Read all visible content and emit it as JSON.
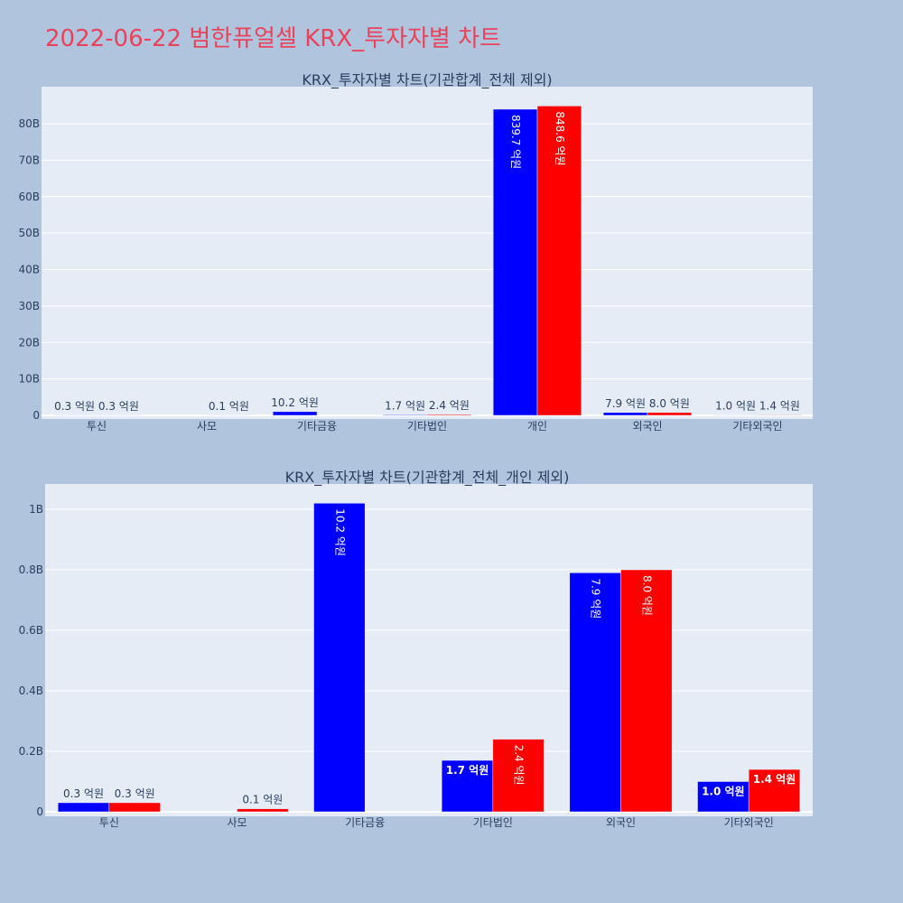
{
  "page": {
    "title": "2022-06-22 범한퓨얼셀 KRX_투자자별 차트"
  },
  "colors": {
    "buy": "#0000ff",
    "sell": "#ff0000",
    "plot_bg": "#e5ecf6",
    "page_bg": "#b0c4de",
    "grid": "#ffffff",
    "text": "#2a3f5f"
  },
  "chart_data": [
    {
      "type": "bar",
      "title": "KRX_투자자별 차트(기관합계_전체 제외)",
      "categories": [
        "투신",
        "사모",
        "기타금융",
        "기타법인",
        "개인",
        "외국인",
        "기타외국인"
      ],
      "ylim": [
        0,
        90
      ],
      "yticks": [
        0,
        10,
        20,
        30,
        40,
        50,
        60,
        70,
        80
      ],
      "ytick_labels": [
        "0",
        "10B",
        "20B",
        "30B",
        "40B",
        "50B",
        "60B",
        "70B",
        "80B"
      ],
      "grid": true,
      "series": [
        {
          "color_key": "buy",
          "values": [
            0.03,
            null,
            1.02,
            0.17,
            83.97,
            0.79,
            0.1
          ],
          "labels": [
            "0.3 억원",
            "",
            "10.2 억원",
            "1.7 억원",
            "839.7 억원",
            "7.9 억원",
            "1.0 억원"
          ]
        },
        {
          "color_key": "sell",
          "values": [
            0.03,
            0.01,
            null,
            0.24,
            84.86,
            0.8,
            0.14
          ],
          "labels": [
            "0.3 억원",
            "0.1 억원",
            "",
            "2.4 억원",
            "848.6 억원",
            "8.0 억원",
            "1.4 억원"
          ]
        }
      ]
    },
    {
      "type": "bar",
      "title": "KRX_투자자별 차트(기관합계_전체_개인 제외)",
      "categories": [
        "투신",
        "사모",
        "기타금융",
        "기타법인",
        "외국인",
        "기타외국인"
      ],
      "ylim": [
        0,
        1.08
      ],
      "yticks": [
        0,
        0.2,
        0.4,
        0.6,
        0.8,
        1.0
      ],
      "ytick_labels": [
        "0",
        "0.2B",
        "0.4B",
        "0.6B",
        "0.8B",
        "1B"
      ],
      "grid": true,
      "series": [
        {
          "color_key": "buy",
          "values": [
            0.03,
            null,
            1.02,
            0.17,
            0.79,
            0.1
          ],
          "labels": [
            "0.3 억원",
            "",
            "10.2 억원",
            "1.7 억원",
            "7.9 억원",
            "1.0 억원"
          ]
        },
        {
          "color_key": "sell",
          "values": [
            0.03,
            0.01,
            null,
            0.24,
            0.8,
            0.14
          ],
          "labels": [
            "0.3 억원",
            "0.1 억원",
            "",
            "2.4 억원",
            "8.0 억원",
            "1.4 억원"
          ]
        }
      ]
    }
  ]
}
